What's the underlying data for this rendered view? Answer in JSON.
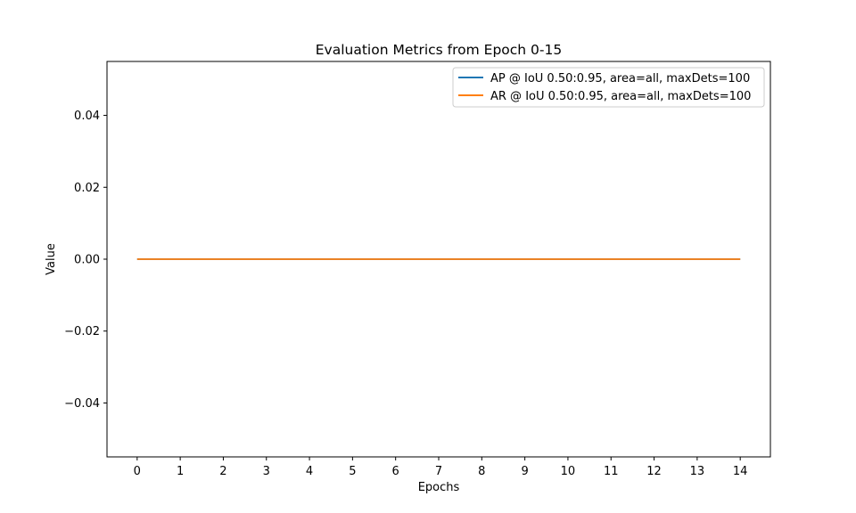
{
  "chart_data": {
    "type": "line",
    "title": "Evaluation Metrics from Epoch 0-15",
    "xlabel": "Epochs",
    "ylabel": "Value",
    "x": [
      0,
      1,
      2,
      3,
      4,
      5,
      6,
      7,
      8,
      9,
      10,
      11,
      12,
      13,
      14
    ],
    "xticks": [
      "0",
      "1",
      "2",
      "3",
      "4",
      "5",
      "6",
      "7",
      "8",
      "9",
      "10",
      "11",
      "12",
      "13",
      "14"
    ],
    "yticks": [
      -0.04,
      -0.02,
      0.0,
      0.02,
      0.04
    ],
    "ytick_labels": [
      "−0.04",
      "−0.02",
      "0.00",
      "0.02",
      "0.04"
    ],
    "xlim": [
      -0.7,
      14.7
    ],
    "ylim": [
      -0.055,
      0.055
    ],
    "grid": false,
    "legend_position": "top-right",
    "series": [
      {
        "name": "AP @ IoU 0.50:0.95, area=all, maxDets=100",
        "color": "#1f77b4",
        "values": [
          0,
          0,
          0,
          0,
          0,
          0,
          0,
          0,
          0,
          0,
          0,
          0,
          0,
          0,
          0
        ]
      },
      {
        "name": "AR @ IoU 0.50:0.95, area=all, maxDets=100",
        "color": "#ff7f0e",
        "values": [
          0,
          0,
          0,
          0,
          0,
          0,
          0,
          0,
          0,
          0,
          0,
          0,
          0,
          0,
          0
        ]
      }
    ]
  }
}
